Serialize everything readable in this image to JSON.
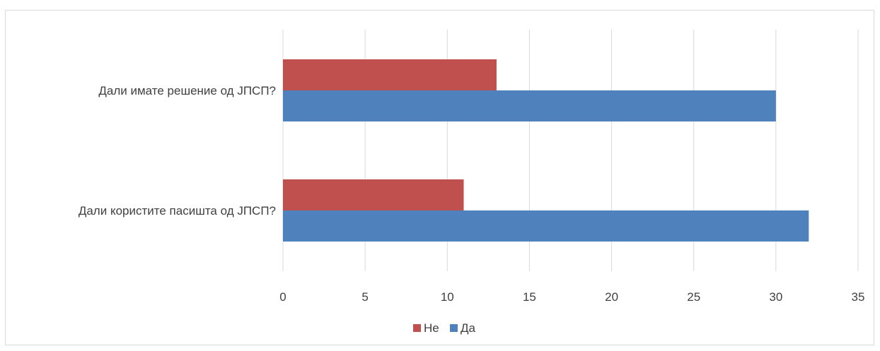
{
  "chart_data": {
    "type": "bar",
    "orientation": "horizontal",
    "categories": [
      "Дали имате решение од ЈПСП?",
      "Дали користите пасишта од ЈПСП?"
    ],
    "series": [
      {
        "name": "Не",
        "color": "#c0504d",
        "values": [
          13,
          11
        ]
      },
      {
        "name": "Да",
        "color": "#4f81bd",
        "values": [
          30,
          32
        ]
      }
    ],
    "xlim": [
      0,
      35
    ],
    "xticks": [
      "0",
      "5",
      "10",
      "15",
      "20",
      "25",
      "30",
      "35"
    ],
    "grid": true,
    "legend_position": "bottom",
    "title": "",
    "xlabel": "",
    "ylabel": ""
  }
}
